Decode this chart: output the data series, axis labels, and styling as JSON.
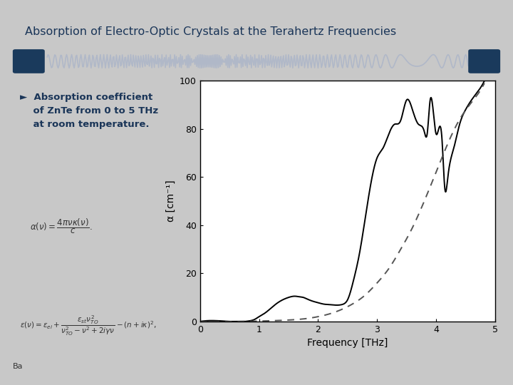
{
  "title": "Absorption of Electro-Optic Crystals at the Terahertz Frequencies",
  "xlabel": "Frequency [THz]",
  "ylabel": "α [cm⁻¹]",
  "xlim": [
    0,
    5
  ],
  "ylim": [
    0,
    100
  ],
  "xticks": [
    0,
    1,
    2,
    3,
    4,
    5
  ],
  "yticks": [
    0,
    20,
    40,
    60,
    80,
    100
  ],
  "bg_color": "#ffffff",
  "outer_bg": "#c8c8c8",
  "title_color": "#1a3558",
  "solid_color": "#000000",
  "dashed_color": "#555555",
  "bullet_color": "#1a3558",
  "wave_color": "#b0b8c8",
  "blue_deco_color": "#1a3a5c",
  "solid_x": [
    0.0,
    0.5,
    0.85,
    0.92,
    1.0,
    1.1,
    1.2,
    1.3,
    1.4,
    1.5,
    1.6,
    1.7,
    1.75,
    1.8,
    1.9,
    2.0,
    2.1,
    2.2,
    2.3,
    2.4,
    2.45,
    2.5,
    2.6,
    2.7,
    2.8,
    2.9,
    3.0,
    3.1,
    3.2,
    3.3,
    3.4,
    3.5,
    3.6,
    3.7,
    3.8,
    3.85,
    3.9,
    4.0,
    4.1,
    4.15,
    4.2,
    4.3,
    4.4,
    4.5,
    4.6,
    4.75,
    4.82
  ],
  "solid_y": [
    0.0,
    0.0,
    0.3,
    0.8,
    2.0,
    3.5,
    5.5,
    7.5,
    9.0,
    10.0,
    10.5,
    10.2,
    10.0,
    9.5,
    8.5,
    7.8,
    7.2,
    7.0,
    6.8,
    7.0,
    7.5,
    9.0,
    17.0,
    28.0,
    43.0,
    58.0,
    68.0,
    72.0,
    78.0,
    82.0,
    83.5,
    92.0,
    88.0,
    82.0,
    79.0,
    78.0,
    92.0,
    78.0,
    76.0,
    55.0,
    60.0,
    72.0,
    82.0,
    88.0,
    92.0,
    97.0,
    100.0
  ],
  "dashed_x": [
    0.0,
    0.3,
    0.6,
    0.9,
    1.2,
    1.5,
    1.8,
    2.0,
    2.2,
    2.4,
    2.6,
    2.8,
    3.0,
    3.2,
    3.4,
    3.6,
    3.8,
    4.0,
    4.2,
    4.4,
    4.6,
    4.75,
    4.82
  ],
  "dashed_y": [
    0.0,
    0.0,
    0.0,
    0.1,
    0.3,
    0.6,
    1.2,
    2.0,
    3.2,
    5.0,
    7.5,
    11.0,
    16.0,
    22.0,
    30.0,
    39.0,
    50.0,
    62.0,
    74.0,
    84.0,
    91.0,
    96.0,
    99.0
  ]
}
